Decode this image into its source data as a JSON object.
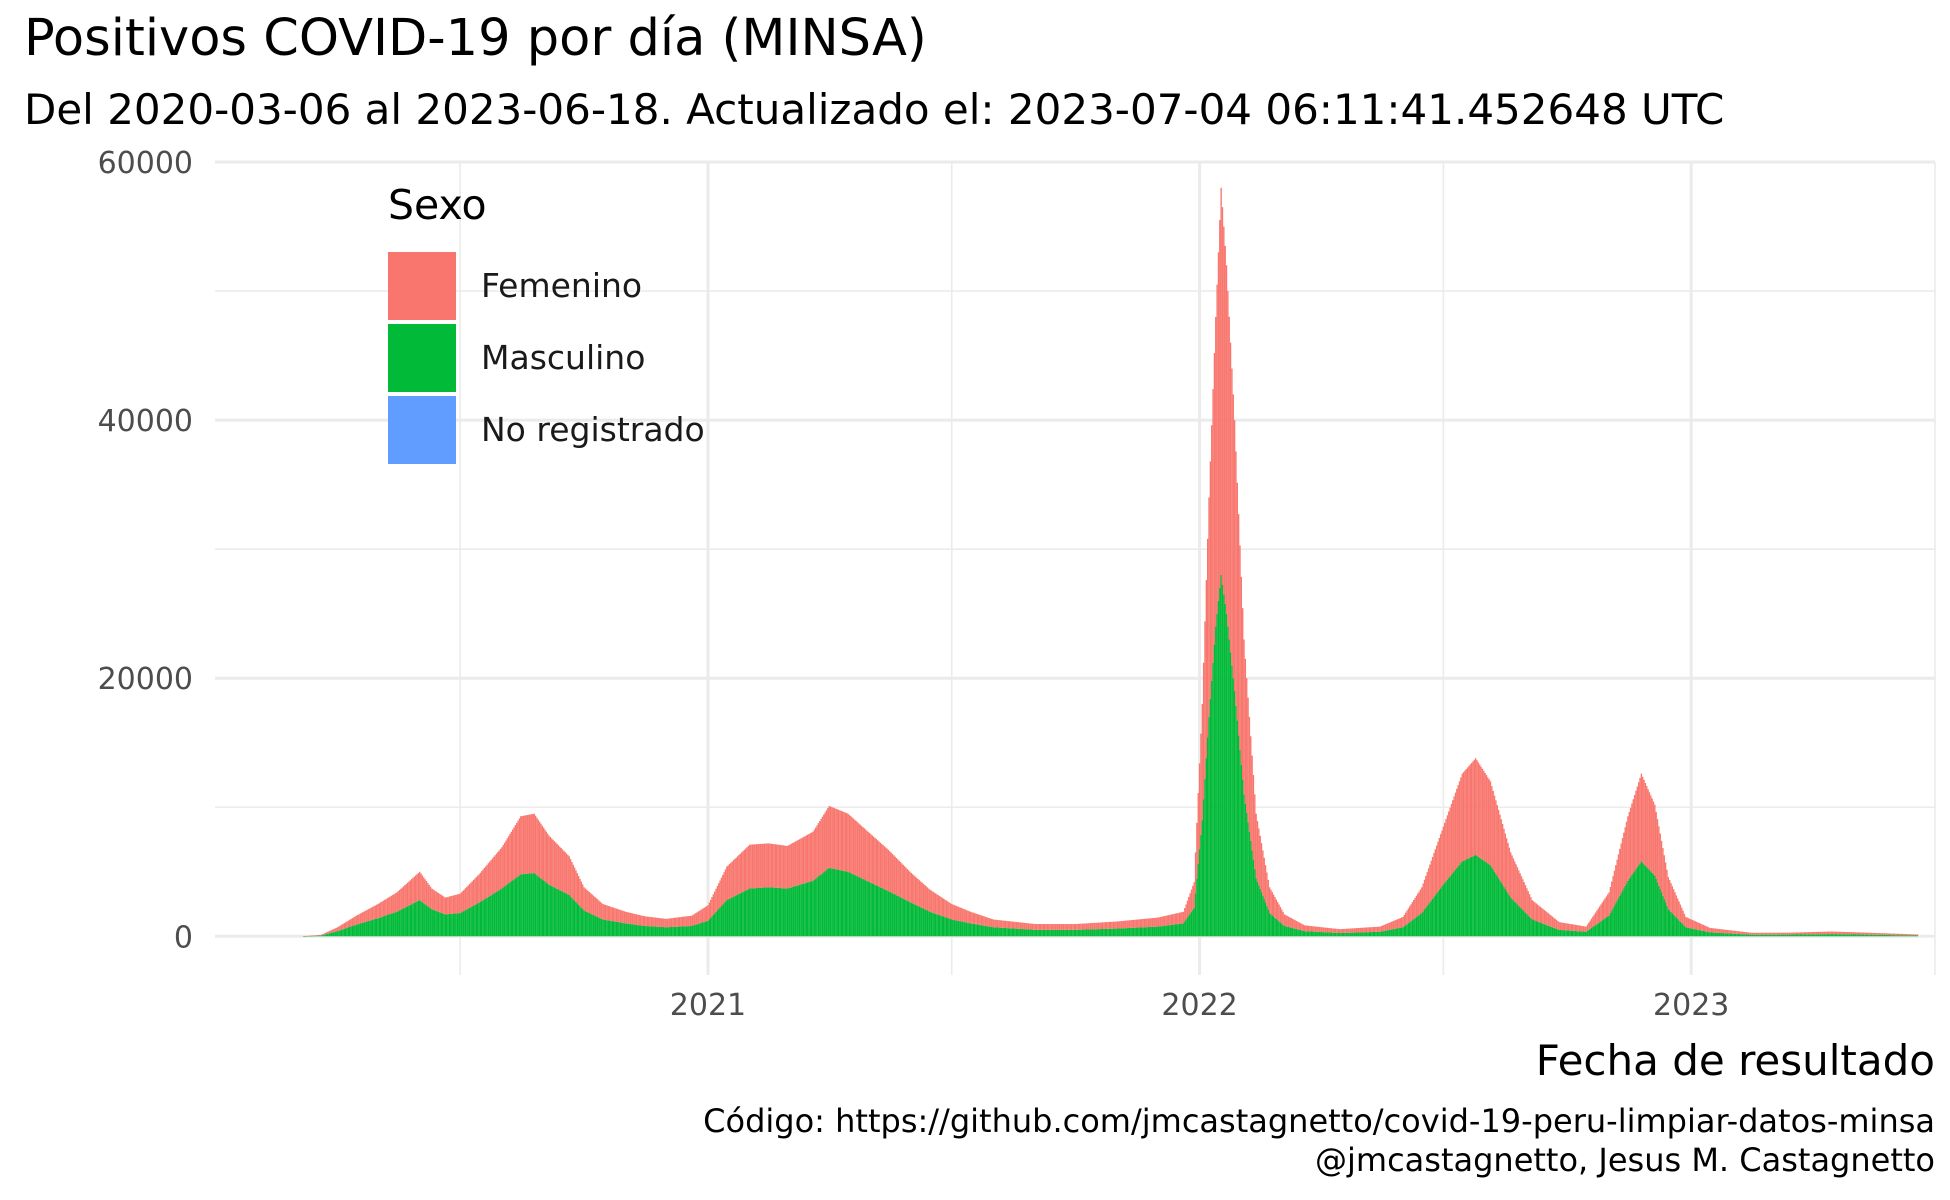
{
  "chart_data": {
    "type": "bar",
    "stacked": true,
    "title": "Positivos COVID-19 por día (MINSA)",
    "subtitle": "Del 2020-03-06 al 2023-06-18. Actualizado el: 2023-07-04 06:11:41.452648 UTC",
    "xlabel": "Fecha de resultado",
    "ylabel": "",
    "caption": [
      "Código: https://github.com/jmcastagnetto/covid-19-peru-limpiar-datos-minsa",
      "@jmcastagnetto, Jesus M. Castagnetto"
    ],
    "x_range": [
      "2020-03-06",
      "2023-06-18"
    ],
    "xlim": [
      "2020-01-01",
      "2023-07-01"
    ],
    "ylim": [
      -3000,
      60000
    ],
    "x_ticks": [
      {
        "date": "2021-01-01",
        "label": "2021"
      },
      {
        "date": "2022-01-01",
        "label": "2022"
      },
      {
        "date": "2023-01-01",
        "label": "2023"
      }
    ],
    "x_minor_ticks": [
      "2020-07-01",
      "2021-07-01",
      "2022-07-01",
      "2023-07-01"
    ],
    "y_ticks": [
      0,
      20000,
      40000,
      60000
    ],
    "y_minor_ticks": [
      10000,
      30000,
      50000
    ],
    "grid": true,
    "legend": {
      "title": "Sexo",
      "position": "top-left",
      "entries": [
        "Femenino",
        "Masculino",
        "No registrado"
      ]
    },
    "series": [
      {
        "name": "Femenino",
        "color": "#F8766D",
        "points": [
          [
            "2020-03-06",
            0
          ],
          [
            "2020-03-20",
            60
          ],
          [
            "2020-04-01",
            300
          ],
          [
            "2020-04-15",
            700
          ],
          [
            "2020-05-01",
            1100
          ],
          [
            "2020-05-15",
            1500
          ],
          [
            "2020-06-01",
            2200
          ],
          [
            "2020-06-10",
            1600
          ],
          [
            "2020-06-20",
            1300
          ],
          [
            "2020-07-01",
            1500
          ],
          [
            "2020-07-15",
            2200
          ],
          [
            "2020-08-01",
            3200
          ],
          [
            "2020-08-15",
            4500
          ],
          [
            "2020-08-25",
            4600
          ],
          [
            "2020-09-05",
            3800
          ],
          [
            "2020-09-20",
            3000
          ],
          [
            "2020-10-01",
            1800
          ],
          [
            "2020-10-15",
            1200
          ],
          [
            "2020-11-01",
            900
          ],
          [
            "2020-11-15",
            750
          ],
          [
            "2020-12-01",
            650
          ],
          [
            "2020-12-20",
            800
          ],
          [
            "2021-01-01",
            1200
          ],
          [
            "2021-01-15",
            2600
          ],
          [
            "2021-02-01",
            3400
          ],
          [
            "2021-02-15",
            3400
          ],
          [
            "2021-03-01",
            3300
          ],
          [
            "2021-03-20",
            3800
          ],
          [
            "2021-04-01",
            4800
          ],
          [
            "2021-04-15",
            4500
          ],
          [
            "2021-05-01",
            3800
          ],
          [
            "2021-05-15",
            3200
          ],
          [
            "2021-06-01",
            2300
          ],
          [
            "2021-06-15",
            1700
          ],
          [
            "2021-07-01",
            1200
          ],
          [
            "2021-07-15",
            900
          ],
          [
            "2021-08-01",
            600
          ],
          [
            "2021-09-01",
            450
          ],
          [
            "2021-10-01",
            450
          ],
          [
            "2021-11-01",
            550
          ],
          [
            "2021-12-01",
            700
          ],
          [
            "2021-12-20",
            900
          ],
          [
            "2021-12-28",
            2000
          ],
          [
            "2022-01-03",
            9000
          ],
          [
            "2022-01-08",
            17000
          ],
          [
            "2022-01-13",
            24000
          ],
          [
            "2022-01-17",
            30000
          ],
          [
            "2022-01-21",
            27000
          ],
          [
            "2022-01-27",
            21000
          ],
          [
            "2022-02-03",
            12000
          ],
          [
            "2022-02-12",
            5000
          ],
          [
            "2022-02-22",
            2000
          ],
          [
            "2022-03-05",
            900
          ],
          [
            "2022-03-20",
            450
          ],
          [
            "2022-04-15",
            300
          ],
          [
            "2022-05-15",
            400
          ],
          [
            "2022-06-01",
            800
          ],
          [
            "2022-06-15",
            2000
          ],
          [
            "2022-07-01",
            4500
          ],
          [
            "2022-07-15",
            6800
          ],
          [
            "2022-07-25",
            7500
          ],
          [
            "2022-08-05",
            6500
          ],
          [
            "2022-08-20",
            3500
          ],
          [
            "2022-09-05",
            1500
          ],
          [
            "2022-09-25",
            600
          ],
          [
            "2022-10-15",
            400
          ],
          [
            "2022-11-01",
            1800
          ],
          [
            "2022-11-15",
            5000
          ],
          [
            "2022-11-25",
            6800
          ],
          [
            "2022-12-05",
            5500
          ],
          [
            "2022-12-15",
            2500
          ],
          [
            "2022-12-28",
            800
          ],
          [
            "2023-01-15",
            350
          ],
          [
            "2023-02-15",
            150
          ],
          [
            "2023-03-15",
            150
          ],
          [
            "2023-04-15",
            200
          ],
          [
            "2023-05-15",
            150
          ],
          [
            "2023-06-18",
            80
          ]
        ]
      },
      {
        "name": "Masculino",
        "color": "#00BA38",
        "points": [
          [
            "2020-03-06",
            0
          ],
          [
            "2020-03-20",
            60
          ],
          [
            "2020-04-01",
            400
          ],
          [
            "2020-04-15",
            900
          ],
          [
            "2020-05-01",
            1400
          ],
          [
            "2020-05-15",
            1900
          ],
          [
            "2020-06-01",
            2800
          ],
          [
            "2020-06-10",
            2100
          ],
          [
            "2020-06-20",
            1700
          ],
          [
            "2020-07-01",
            1800
          ],
          [
            "2020-07-15",
            2600
          ],
          [
            "2020-08-01",
            3700
          ],
          [
            "2020-08-15",
            4800
          ],
          [
            "2020-08-25",
            4900
          ],
          [
            "2020-09-05",
            4000
          ],
          [
            "2020-09-20",
            3200
          ],
          [
            "2020-10-01",
            2000
          ],
          [
            "2020-10-15",
            1300
          ],
          [
            "2020-11-01",
            1000
          ],
          [
            "2020-11-15",
            800
          ],
          [
            "2020-12-01",
            700
          ],
          [
            "2020-12-20",
            800
          ],
          [
            "2021-01-01",
            1200
          ],
          [
            "2021-01-15",
            2800
          ],
          [
            "2021-02-01",
            3700
          ],
          [
            "2021-02-15",
            3800
          ],
          [
            "2021-03-01",
            3700
          ],
          [
            "2021-03-20",
            4300
          ],
          [
            "2021-04-01",
            5300
          ],
          [
            "2021-04-15",
            5000
          ],
          [
            "2021-05-01",
            4200
          ],
          [
            "2021-05-15",
            3500
          ],
          [
            "2021-06-01",
            2600
          ],
          [
            "2021-06-15",
            1900
          ],
          [
            "2021-07-01",
            1300
          ],
          [
            "2021-07-15",
            1000
          ],
          [
            "2021-08-01",
            700
          ],
          [
            "2021-09-01",
            500
          ],
          [
            "2021-10-01",
            500
          ],
          [
            "2021-11-01",
            600
          ],
          [
            "2021-12-01",
            750
          ],
          [
            "2021-12-20",
            1000
          ],
          [
            "2021-12-28",
            2200
          ],
          [
            "2022-01-03",
            9000
          ],
          [
            "2022-01-08",
            17000
          ],
          [
            "2022-01-13",
            24000
          ],
          [
            "2022-01-17",
            28000
          ],
          [
            "2022-01-21",
            25000
          ],
          [
            "2022-01-27",
            19000
          ],
          [
            "2022-02-03",
            11000
          ],
          [
            "2022-02-12",
            4500
          ],
          [
            "2022-02-22",
            1800
          ],
          [
            "2022-03-05",
            800
          ],
          [
            "2022-03-20",
            400
          ],
          [
            "2022-04-15",
            250
          ],
          [
            "2022-05-15",
            350
          ],
          [
            "2022-06-01",
            700
          ],
          [
            "2022-06-15",
            1800
          ],
          [
            "2022-07-01",
            4000
          ],
          [
            "2022-07-15",
            5800
          ],
          [
            "2022-07-25",
            6300
          ],
          [
            "2022-08-05",
            5500
          ],
          [
            "2022-08-20",
            3000
          ],
          [
            "2022-09-05",
            1300
          ],
          [
            "2022-09-25",
            500
          ],
          [
            "2022-10-15",
            350
          ],
          [
            "2022-11-01",
            1600
          ],
          [
            "2022-11-15",
            4300
          ],
          [
            "2022-11-25",
            5800
          ],
          [
            "2022-12-05",
            4700
          ],
          [
            "2022-12-15",
            2100
          ],
          [
            "2022-12-28",
            700
          ],
          [
            "2023-01-15",
            300
          ],
          [
            "2023-02-15",
            120
          ],
          [
            "2023-03-15",
            130
          ],
          [
            "2023-04-15",
            170
          ],
          [
            "2023-05-15",
            120
          ],
          [
            "2023-06-18",
            60
          ]
        ]
      },
      {
        "name": "No registrado",
        "color": "#619CFF",
        "points": [
          [
            "2020-03-06",
            0
          ],
          [
            "2023-06-18",
            0
          ]
        ]
      }
    ]
  }
}
